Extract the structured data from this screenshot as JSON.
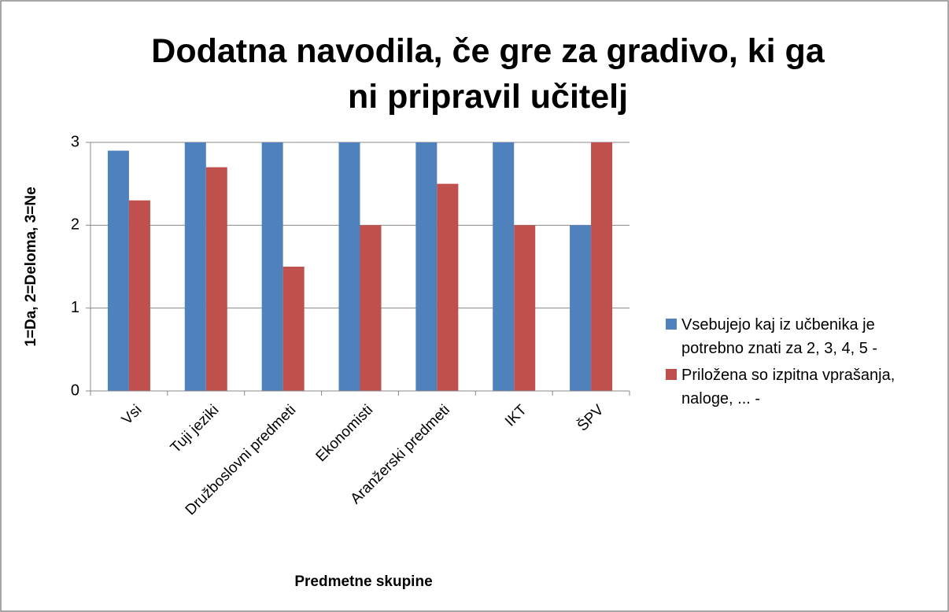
{
  "chart_data": {
    "type": "bar",
    "title": "Dodatna navodila, če gre za gradivo, ki ga ni pripravil učitelj",
    "x_label": "Predmetne skupine",
    "y_label": "1=Da, 2=Deloma, 3=Ne",
    "categories": [
      "Vsi",
      "Tuji jeziki",
      "Družboslovni predmeti",
      "Ekonomisti",
      "Aranžerski predmeti",
      "IKT",
      "ŠPV"
    ],
    "series": [
      {
        "name": "Vsebujejo kaj iz učbenika je potrebno znati za 2, 3, 4, 5 -",
        "color": "#4f81bd",
        "values": [
          2.9,
          3,
          3,
          3,
          3,
          3,
          2
        ]
      },
      {
        "name": "Priložena so izpitna vprašanja, naloge, ... -",
        "color": "#c0504d",
        "values": [
          2.3,
          2.7,
          1.5,
          2,
          2.5,
          2,
          3
        ]
      }
    ],
    "ylim": [
      0,
      3
    ],
    "yticks": [
      0,
      1,
      2,
      3
    ],
    "grid": true,
    "legend": "right"
  }
}
